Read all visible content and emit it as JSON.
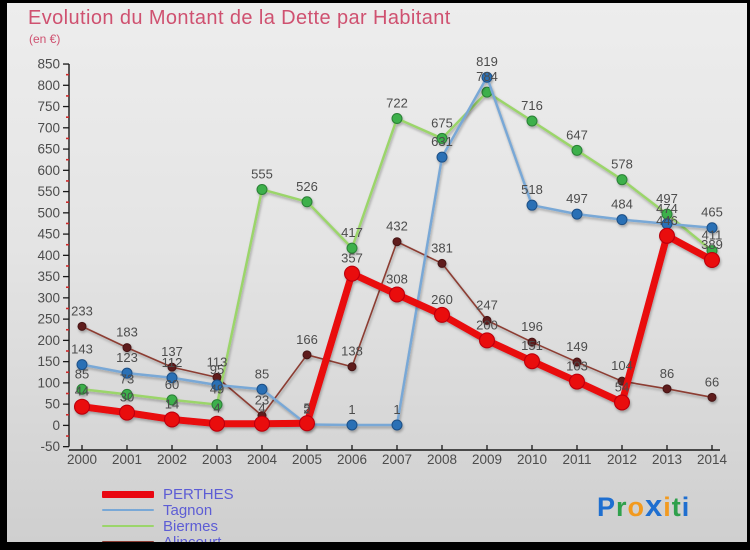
{
  "header": {
    "title": "Evolution du Montant de la Dette par Habitant",
    "subtitle": "(en €)"
  },
  "chart_data": {
    "type": "line",
    "x": [
      2000,
      2001,
      2002,
      2003,
      2004,
      2005,
      2006,
      2007,
      2008,
      2009,
      2010,
      2011,
      2012,
      2013,
      2014
    ],
    "ylim": [
      -50,
      850
    ],
    "ytick_step": 50,
    "grid": false,
    "legend_position": "bottom-left",
    "axis_color": "#1a1a1a",
    "tick_label_color": "#4c4c4c",
    "value_label_color": "#4c4c4c",
    "minor_tick_color": "#cc2a2a",
    "series": [
      {
        "name": "PERTHES",
        "color": "#e90711",
        "marker_color": "#e90711",
        "marker_edge": "#b80008",
        "width": 7,
        "marker_r": 7.5,
        "values": [
          44,
          30,
          14,
          4,
          4,
          5,
          357,
          308,
          260,
          200,
          151,
          103,
          54,
          446,
          389
        ]
      },
      {
        "name": "Tagnon",
        "color": "#79a8d6",
        "marker_color": "#2b70b5",
        "marker_edge": "#1d4f85",
        "width": 2.5,
        "marker_r": 5,
        "values": [
          143,
          123,
          112,
          95,
          85,
          2,
          1,
          1,
          631,
          819,
          518,
          497,
          484,
          474,
          465
        ]
      },
      {
        "name": "Biermes",
        "color": "#9bd56b",
        "marker_color": "#3db04b",
        "marker_edge": "#2a7f36",
        "width": 2.5,
        "marker_r": 5,
        "values": [
          85,
          73,
          60,
          49,
          555,
          526,
          417,
          722,
          675,
          784,
          716,
          647,
          578,
          497,
          411
        ]
      },
      {
        "name": "Alincourt",
        "color": "#8c3c33",
        "marker_color": "#5e1d1d",
        "marker_edge": "#451212",
        "width": 1.6,
        "marker_r": 4,
        "values": [
          233,
          183,
          137,
          113,
          23,
          166,
          138,
          432,
          381,
          247,
          196,
          149,
          104,
          86,
          66
        ]
      }
    ]
  },
  "watermark": {
    "letters": [
      {
        "ch": "P",
        "color": "#1f6fd0",
        "big": false
      },
      {
        "ch": "r",
        "color": "#2fa04c",
        "big": false
      },
      {
        "ch": "o",
        "color": "#f29a1f",
        "big": false
      },
      {
        "ch": "x",
        "color": "#1f6fd0",
        "big": true
      },
      {
        "ch": "i",
        "color": "#f29a1f",
        "big": false
      },
      {
        "ch": "t",
        "color": "#2fa04c",
        "big": false
      },
      {
        "ch": "i",
        "color": "#1f6fd0",
        "big": false
      }
    ]
  }
}
